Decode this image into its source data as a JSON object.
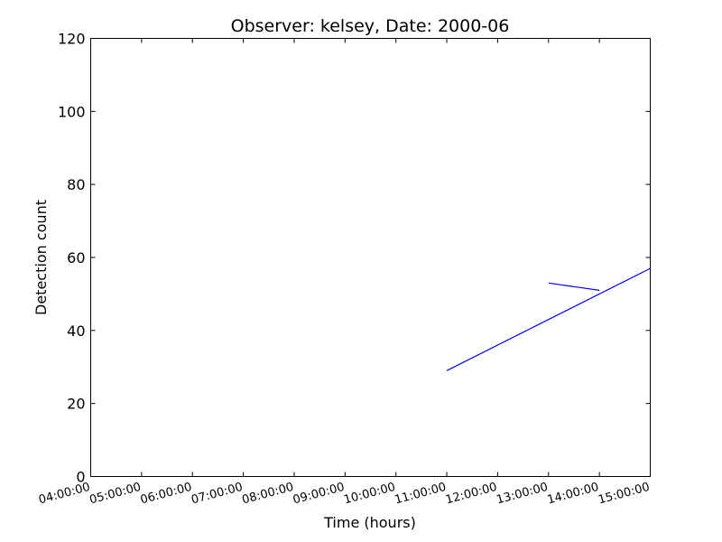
{
  "chart_data": {
    "type": "line",
    "title": "Observer: kelsey, Date: 2000-06",
    "xlabel": "Time (hours)",
    "ylabel": "Detection count",
    "xlim": [
      "04:00:00",
      "15:00:00"
    ],
    "ylim": [
      0,
      120
    ],
    "x_ticks": [
      "04:00:00",
      "05:00:00",
      "06:00:00",
      "07:00:00",
      "08:00:00",
      "09:00:00",
      "10:00:00",
      "11:00:00",
      "12:00:00",
      "13:00:00",
      "14:00:00",
      "15:00:00"
    ],
    "y_ticks": [
      "0",
      "20",
      "40",
      "60",
      "80",
      "100",
      "120"
    ],
    "grid": false,
    "series": [
      {
        "color": "#0000ff",
        "points": [
          {
            "x": "11:00:00",
            "y": 29
          },
          {
            "x": "15:00:00",
            "y": 57
          }
        ]
      },
      {
        "color": "#0000ff",
        "points": [
          {
            "x": "13:00:00",
            "y": 53
          },
          {
            "x": "14:00:00",
            "y": 51
          }
        ]
      }
    ]
  }
}
